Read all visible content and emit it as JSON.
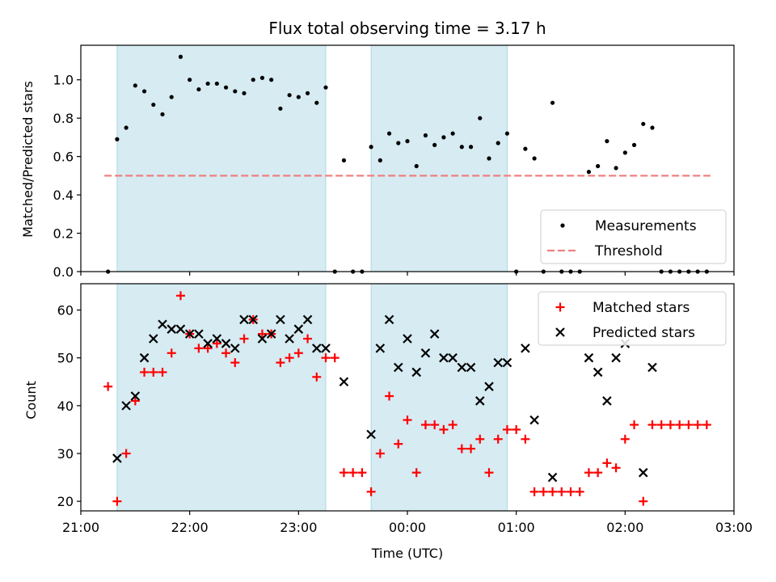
{
  "chart_data": [
    {
      "type": "scatter",
      "title": "Flux total observing time = 3.17 h",
      "xlabel": "",
      "ylabel": "Matched/Predicted stars",
      "xlim": [
        "21:00",
        "03:00"
      ],
      "ylim": [
        0,
        1.18
      ],
      "y_ticks": [
        0.0,
        0.2,
        0.4,
        0.6,
        0.8,
        1.0
      ],
      "y_tick_labels": [
        "0.0",
        "0.2",
        "0.4",
        "0.6",
        "0.8",
        "1.0"
      ],
      "legend": {
        "position": "lower-right",
        "entries": [
          "Measurements",
          "Threshold"
        ]
      },
      "shaded_intervals": [
        [
          "21:20",
          "23:15"
        ],
        [
          "23:40",
          "00:55"
        ]
      ],
      "threshold": {
        "name": "Threshold",
        "y": 0.5,
        "x_start": "21:13",
        "x_end": "02:47",
        "color": "#f08080"
      },
      "series": [
        {
          "name": "Measurements",
          "color": "#000000",
          "points": [
            [
              "21:15",
              0.0
            ],
            [
              "21:20",
              0.69
            ],
            [
              "21:25",
              0.75
            ],
            [
              "21:30",
              0.97
            ],
            [
              "21:35",
              0.94
            ],
            [
              "21:40",
              0.87
            ],
            [
              "21:45",
              0.82
            ],
            [
              "21:50",
              0.91
            ],
            [
              "21:55",
              1.12
            ],
            [
              "22:00",
              1.0
            ],
            [
              "22:05",
              0.95
            ],
            [
              "22:10",
              0.98
            ],
            [
              "22:15",
              0.98
            ],
            [
              "22:20",
              0.96
            ],
            [
              "22:25",
              0.94
            ],
            [
              "22:30",
              0.93
            ],
            [
              "22:35",
              1.0
            ],
            [
              "22:40",
              1.01
            ],
            [
              "22:45",
              1.0
            ],
            [
              "22:50",
              0.85
            ],
            [
              "22:55",
              0.92
            ],
            [
              "23:00",
              0.91
            ],
            [
              "23:05",
              0.93
            ],
            [
              "23:10",
              0.88
            ],
            [
              "23:15",
              0.96
            ],
            [
              "23:20",
              0.0
            ],
            [
              "23:25",
              0.58
            ],
            [
              "23:30",
              0.0
            ],
            [
              "23:35",
              0.0
            ],
            [
              "23:40",
              0.65
            ],
            [
              "23:45",
              0.58
            ],
            [
              "23:50",
              0.72
            ],
            [
              "23:55",
              0.67
            ],
            [
              "00:00",
              0.68
            ],
            [
              "00:05",
              0.55
            ],
            [
              "00:10",
              0.71
            ],
            [
              "00:15",
              0.66
            ],
            [
              "00:20",
              0.7
            ],
            [
              "00:25",
              0.72
            ],
            [
              "00:30",
              0.65
            ],
            [
              "00:35",
              0.65
            ],
            [
              "00:40",
              0.8
            ],
            [
              "00:45",
              0.59
            ],
            [
              "00:50",
              0.67
            ],
            [
              "00:55",
              0.72
            ],
            [
              "01:00",
              0.0
            ],
            [
              "01:05",
              0.64
            ],
            [
              "01:10",
              0.59
            ],
            [
              "01:15",
              0.0
            ],
            [
              "01:20",
              0.88
            ],
            [
              "01:25",
              0.0
            ],
            [
              "01:30",
              0.0
            ],
            [
              "01:35",
              0.0
            ],
            [
              "01:40",
              0.52
            ],
            [
              "01:45",
              0.55
            ],
            [
              "01:50",
              0.68
            ],
            [
              "01:55",
              0.54
            ],
            [
              "02:00",
              0.62
            ],
            [
              "02:05",
              0.66
            ],
            [
              "02:10",
              0.77
            ],
            [
              "02:15",
              0.75
            ],
            [
              "02:20",
              0.0
            ],
            [
              "02:25",
              0.0
            ],
            [
              "02:30",
              0.0
            ],
            [
              "02:35",
              0.0
            ],
            [
              "02:40",
              0.0
            ],
            [
              "02:45",
              0.0
            ]
          ]
        }
      ]
    },
    {
      "type": "scatter",
      "title": "",
      "xlabel": "Time (UTC)",
      "ylabel": "Count",
      "xlim": [
        "21:00",
        "03:00"
      ],
      "ylim": [
        18,
        65.5
      ],
      "y_ticks": [
        20,
        30,
        40,
        50,
        60
      ],
      "y_tick_labels": [
        "20",
        "30",
        "40",
        "50",
        "60"
      ],
      "x_ticks": [
        "21:00",
        "22:00",
        "23:00",
        "00:00",
        "01:00",
        "02:00",
        "03:00"
      ],
      "legend": {
        "position": "top-right",
        "entries": [
          "Matched stars",
          "Predicted stars"
        ]
      },
      "shaded_intervals": [
        [
          "21:20",
          "23:15"
        ],
        [
          "23:40",
          "00:55"
        ]
      ],
      "series": [
        {
          "name": "Matched stars",
          "marker": "plus",
          "color": "#ff0000",
          "points": [
            [
              "21:15",
              44
            ],
            [
              "21:20",
              20
            ],
            [
              "21:25",
              30
            ],
            [
              "21:30",
              41
            ],
            [
              "21:35",
              47
            ],
            [
              "21:40",
              47
            ],
            [
              "21:45",
              47
            ],
            [
              "21:50",
              51
            ],
            [
              "21:55",
              63
            ],
            [
              "22:00",
              55
            ],
            [
              "22:05",
              52
            ],
            [
              "22:10",
              52
            ],
            [
              "22:15",
              53
            ],
            [
              "22:20",
              51
            ],
            [
              "22:25",
              49
            ],
            [
              "22:30",
              54
            ],
            [
              "22:35",
              58
            ],
            [
              "22:40",
              55
            ],
            [
              "22:45",
              55
            ],
            [
              "22:50",
              49
            ],
            [
              "22:55",
              50
            ],
            [
              "23:00",
              51
            ],
            [
              "23:05",
              54
            ],
            [
              "23:10",
              46
            ],
            [
              "23:15",
              50
            ],
            [
              "23:20",
              50
            ],
            [
              "23:25",
              26
            ],
            [
              "23:30",
              26
            ],
            [
              "23:35",
              26
            ],
            [
              "23:40",
              22
            ],
            [
              "23:45",
              30
            ],
            [
              "23:50",
              42
            ],
            [
              "23:55",
              32
            ],
            [
              "00:00",
              37
            ],
            [
              "00:05",
              26
            ],
            [
              "00:10",
              36
            ],
            [
              "00:15",
              36
            ],
            [
              "00:20",
              35
            ],
            [
              "00:25",
              36
            ],
            [
              "00:30",
              31
            ],
            [
              "00:35",
              31
            ],
            [
              "00:40",
              33
            ],
            [
              "00:45",
              26
            ],
            [
              "00:50",
              33
            ],
            [
              "00:55",
              35
            ],
            [
              "01:00",
              35
            ],
            [
              "01:05",
              33
            ],
            [
              "01:10",
              22
            ],
            [
              "01:15",
              22
            ],
            [
              "01:20",
              22
            ],
            [
              "01:25",
              22
            ],
            [
              "01:30",
              22
            ],
            [
              "01:35",
              22
            ],
            [
              "01:40",
              26
            ],
            [
              "01:45",
              26
            ],
            [
              "01:50",
              28
            ],
            [
              "01:55",
              27
            ],
            [
              "02:00",
              33
            ],
            [
              "02:05",
              36
            ],
            [
              "02:10",
              20
            ],
            [
              "02:15",
              36
            ],
            [
              "02:20",
              36
            ],
            [
              "02:25",
              36
            ],
            [
              "02:30",
              36
            ],
            [
              "02:35",
              36
            ],
            [
              "02:40",
              36
            ],
            [
              "02:45",
              36
            ]
          ]
        },
        {
          "name": "Predicted stars",
          "marker": "x",
          "color": "#000000",
          "points": [
            [
              "21:20",
              29
            ],
            [
              "21:25",
              40
            ],
            [
              "21:30",
              42
            ],
            [
              "21:35",
              50
            ],
            [
              "21:40",
              54
            ],
            [
              "21:45",
              57
            ],
            [
              "21:50",
              56
            ],
            [
              "21:55",
              56
            ],
            [
              "22:00",
              55
            ],
            [
              "22:05",
              55
            ],
            [
              "22:10",
              53
            ],
            [
              "22:15",
              54
            ],
            [
              "22:20",
              53
            ],
            [
              "22:25",
              52
            ],
            [
              "22:30",
              58
            ],
            [
              "22:35",
              58
            ],
            [
              "22:40",
              54
            ],
            [
              "22:45",
              55
            ],
            [
              "22:50",
              58
            ],
            [
              "22:55",
              54
            ],
            [
              "23:00",
              56
            ],
            [
              "23:05",
              58
            ],
            [
              "23:10",
              52
            ],
            [
              "23:15",
              52
            ],
            [
              "23:25",
              45
            ],
            [
              "23:40",
              34
            ],
            [
              "23:45",
              52
            ],
            [
              "23:50",
              58
            ],
            [
              "23:55",
              48
            ],
            [
              "00:00",
              54
            ],
            [
              "00:05",
              47
            ],
            [
              "00:10",
              51
            ],
            [
              "00:15",
              55
            ],
            [
              "00:20",
              50
            ],
            [
              "00:25",
              50
            ],
            [
              "00:30",
              48
            ],
            [
              "00:35",
              48
            ],
            [
              "00:40",
              41
            ],
            [
              "00:45",
              44
            ],
            [
              "00:50",
              49
            ],
            [
              "00:55",
              49
            ],
            [
              "01:05",
              52
            ],
            [
              "01:10",
              37
            ],
            [
              "01:20",
              25
            ],
            [
              "01:40",
              50
            ],
            [
              "01:45",
              47
            ],
            [
              "01:50",
              41
            ],
            [
              "01:55",
              50
            ],
            [
              "02:00",
              53
            ],
            [
              "02:10",
              26
            ],
            [
              "02:15",
              48
            ]
          ]
        }
      ]
    }
  ]
}
